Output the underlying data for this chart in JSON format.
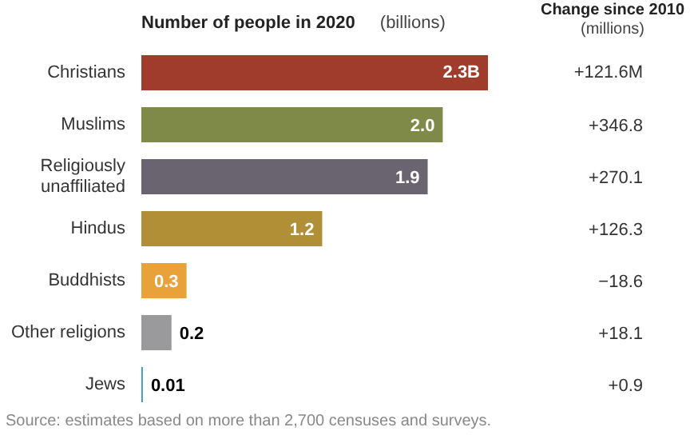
{
  "chart_data": {
    "type": "bar",
    "orientation": "horizontal",
    "title": "Number of people in 2020",
    "subtitle": "(billions)",
    "categories": [
      "Christians",
      "Muslims",
      "Religiously unaffiliated",
      "Hindus",
      "Buddhists",
      "Other religions",
      "Jews"
    ],
    "values": [
      2.3,
      2.0,
      1.9,
      1.2,
      0.3,
      0.2,
      0.01
    ],
    "value_labels": [
      "2.3B",
      "2.0",
      "1.9",
      "1.2",
      "0.3",
      "0.2",
      "0.01"
    ],
    "colors": [
      "#a03c2c",
      "#7f8a48",
      "#6a6370",
      "#b08f36",
      "#e9a23a",
      "#9a9a9c",
      "#3a9fb5"
    ],
    "annotations": [
      "Change since 2010",
      "(millions)",
      "+121.6M",
      "+346.8",
      "+270.1",
      "+126.3",
      "−18.6",
      "+18.1",
      "+0.9",
      "Source: estimates based on more than 2,700 censuses and surveys."
    ]
  }
}
